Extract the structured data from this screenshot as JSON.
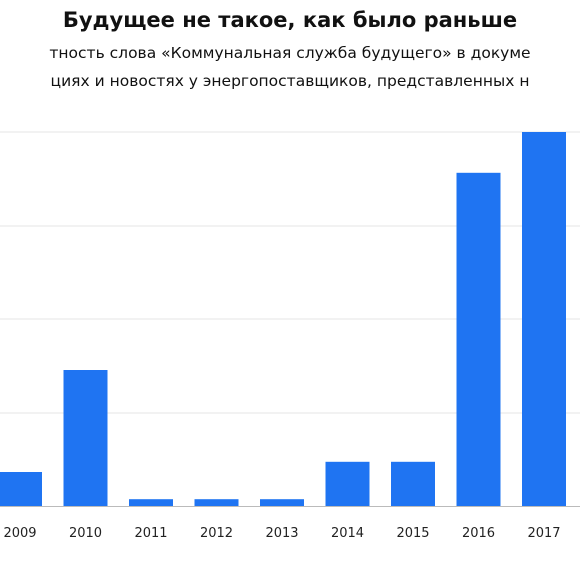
{
  "title": "Будущее не такое, как было раньше",
  "subtitle_line1": "тность слова «Коммунальная служба будущего» в докуме",
  "subtitle_line2": "циях и новостях у энергопоставщиков, представленных н",
  "colors": {
    "bar": "#1f74f2",
    "grid": "#e6e6e6",
    "axis": "#bbbbbb"
  },
  "chart_data": {
    "type": "bar",
    "categories": [
      "2009",
      "2010",
      "2011",
      "2012",
      "2013",
      "2014",
      "2015",
      "2016",
      "2017"
    ],
    "values": [
      5,
      20,
      1,
      1,
      1,
      6.5,
      6.5,
      49,
      55
    ],
    "ylim": [
      0,
      55
    ],
    "grid": true,
    "xlabel": "",
    "ylabel": ""
  }
}
